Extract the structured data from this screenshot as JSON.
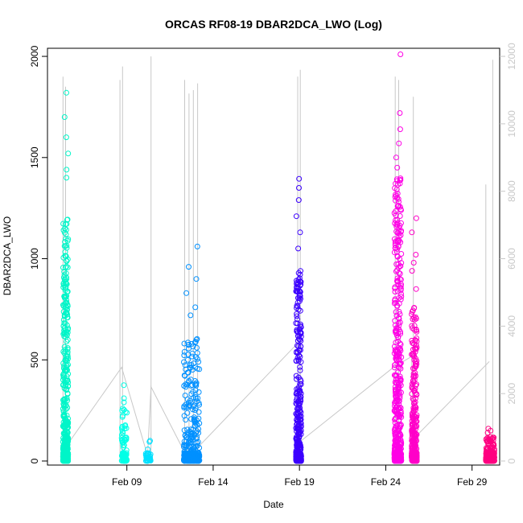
{
  "chart_data": {
    "type": "scatter",
    "title": "ORCAS RF08-19 DBAR2DCA_LWO (Log)",
    "xlabel": "Date",
    "ylabel": "DBAR2DCA_LWO",
    "x_ticks": [
      "Feb 09",
      "Feb 14",
      "Feb 19",
      "Feb 24",
      "Feb 29"
    ],
    "x_tick_days": [
      9,
      14,
      19,
      24,
      29
    ],
    "xlim_days": [
      4.4,
      30.6
    ],
    "ylim": [
      -20,
      2040
    ],
    "y_ticks": [
      0,
      500,
      1000,
      1500,
      2000
    ],
    "y2lim": [
      -120,
      12240
    ],
    "y2_ticks": [
      0,
      2000,
      4000,
      6000,
      8000,
      10000,
      12000
    ],
    "y2_series": {
      "name": "",
      "color": "#c8c8c8",
      "x_days": [
        5.3,
        8.7,
        10.2,
        10.4,
        12.3,
        13.2,
        19.0,
        19.1,
        24.5,
        25.5,
        25.6,
        30.0
      ],
      "values": [
        300,
        2780,
        160,
        2200,
        300,
        450,
        3550,
        600,
        2800,
        3100,
        650,
        2950
      ]
    },
    "series": [
      {
        "name": "",
        "color": "#00f5c8",
        "x_start": 5.3,
        "x_end": 5.6,
        "density": 420,
        "peaks": [
          1820,
          1700,
          1600,
          1520,
          1440,
          1400
        ],
        "bulk_max": 1200
      },
      {
        "name": "",
        "color": "#00ffe6",
        "x_start": 8.7,
        "x_end": 9.0,
        "density": 60,
        "peaks": [
          375,
          310,
          290
        ],
        "bulk_max": 260
      },
      {
        "name": "",
        "color": "#00e0ff",
        "x_start": 10.1,
        "x_end": 10.4,
        "density": 25,
        "peaks": [
          100,
          95
        ],
        "bulk_max": 60
      },
      {
        "name": "",
        "color": "#0090ff",
        "x_start": 12.3,
        "x_end": 13.2,
        "density": 260,
        "peaks": [
          1060,
          960,
          900,
          830,
          760,
          720
        ],
        "bulk_max": 620
      },
      {
        "name": "",
        "color": "#3c00ff",
        "x_start": 18.8,
        "x_end": 19.1,
        "density": 300,
        "peaks": [
          1395,
          1350,
          1290,
          1210,
          1130,
          1050
        ],
        "bulk_max": 940
      },
      {
        "name": "",
        "color": "#ff00e6",
        "x_start": 24.5,
        "x_end": 24.9,
        "density": 480,
        "peaks": [
          2010,
          1720,
          1640,
          1570,
          1500,
          1450
        ],
        "bulk_max": 1400
      },
      {
        "name": "",
        "color": "#ff00c8",
        "x_start": 25.5,
        "x_end": 25.8,
        "density": 280,
        "peaks": [
          1200,
          1130,
          1020,
          980,
          940,
          850
        ],
        "bulk_max": 780
      },
      {
        "name": "",
        "color": "#ff0080",
        "x_start": 29.8,
        "x_end": 30.3,
        "density": 150,
        "peaks": [
          160,
          150,
          140
        ],
        "bulk_max": 120
      }
    ],
    "grid": false,
    "legend": "none"
  }
}
